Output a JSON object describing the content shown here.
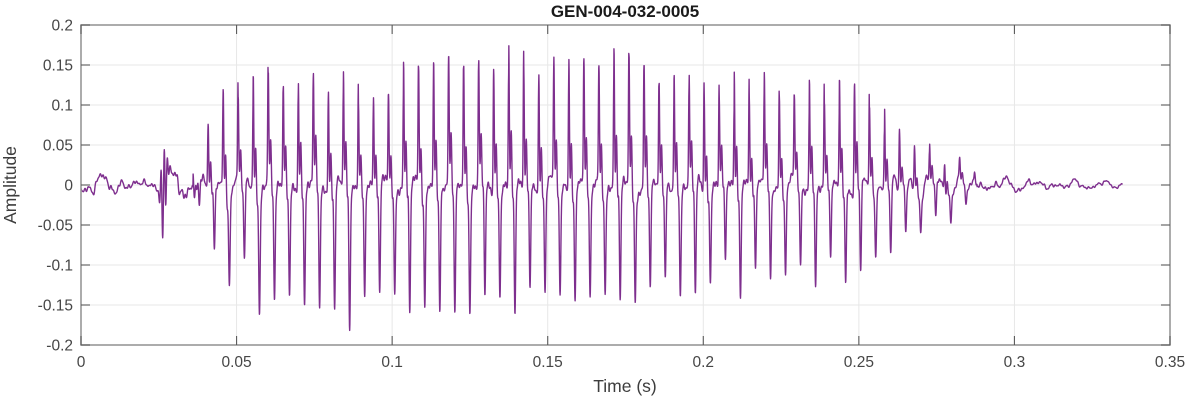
{
  "figure": {
    "background": "#ffffff"
  },
  "chart_data": {
    "type": "line",
    "title": "GEN-004-032-0005",
    "xlabel": "Time (s)",
    "ylabel": "Amplitude",
    "xlim": [
      0,
      0.35
    ],
    "ylim": [
      -0.2,
      0.2
    ],
    "xticks": [
      0,
      0.05,
      0.1,
      0.15,
      0.2,
      0.25,
      0.3,
      0.35
    ],
    "xtick_labels": [
      "0",
      "0.05",
      "0.1",
      "0.15",
      "0.2",
      "0.25",
      "0.3",
      "0.35"
    ],
    "yticks": [
      0.2,
      0.15,
      0.1,
      0.05,
      0,
      -0.05,
      -0.1,
      -0.15,
      -0.2
    ],
    "ytick_labels": [
      "0.2",
      "0.15",
      "0.1",
      "0.05",
      "0",
      "-0.05",
      "-0.1",
      "-0.15",
      "-0.2"
    ],
    "grid": true,
    "box": true,
    "legend": null,
    "line_color": "#7E2F8E",
    "grid_color": "#e7e7e7",
    "axis_color": "#979797",
    "tick_color": "#5a5a5a",
    "tick_label_color": "#464646",
    "label_color": "#3d3d3d",
    "title_color": "#1a1a1a",
    "signal": {
      "kind": "speech-waveform-envelope",
      "duration_s": 0.3346,
      "f0_hz": 207,
      "voiced": {
        "t": [
          0.036,
          0.039,
          0.042,
          0.045,
          0.048,
          0.053,
          0.058,
          0.064,
          0.072,
          0.08,
          0.088,
          0.096,
          0.105,
          0.115,
          0.125,
          0.134,
          0.143,
          0.15,
          0.157,
          0.165,
          0.173,
          0.181,
          0.188,
          0.196,
          0.204,
          0.212,
          0.22,
          0.228,
          0.236,
          0.244,
          0.252,
          0.258,
          0.264,
          0.27,
          0.276,
          0.282,
          0.288
        ],
        "upper": [
          0.015,
          0.045,
          0.075,
          0.095,
          0.105,
          0.11,
          0.13,
          0.125,
          0.13,
          0.12,
          0.115,
          0.12,
          0.13,
          0.13,
          0.14,
          0.15,
          0.157,
          0.15,
          0.157,
          0.145,
          0.145,
          0.147,
          0.135,
          0.11,
          0.13,
          0.115,
          0.12,
          0.115,
          0.11,
          0.105,
          0.11,
          0.085,
          0.06,
          0.045,
          0.032,
          0.02,
          0.008
        ],
        "lower": [
          -0.015,
          -0.045,
          -0.075,
          -0.09,
          -0.1,
          -0.11,
          -0.14,
          -0.15,
          -0.15,
          -0.155,
          -0.165,
          -0.15,
          -0.145,
          -0.14,
          -0.145,
          -0.15,
          -0.148,
          -0.145,
          -0.15,
          -0.14,
          -0.135,
          -0.14,
          -0.13,
          -0.125,
          -0.12,
          -0.115,
          -0.11,
          -0.12,
          -0.11,
          -0.105,
          -0.1,
          -0.085,
          -0.065,
          -0.05,
          -0.04,
          -0.028,
          -0.01
        ]
      },
      "noise": {
        "t": [
          0,
          0.006,
          0.013,
          0.02,
          0.024,
          0.027,
          0.03,
          0.034,
          0.038,
          0.044,
          0.06,
          0.24,
          0.256,
          0.266,
          0.276,
          0.286,
          0.296,
          0.308,
          0.32,
          0.3346
        ],
        "amp": [
          0.012,
          0.016,
          0.012,
          0.01,
          0.011,
          0.02,
          0.027,
          0.028,
          0.024,
          0.016,
          0.012,
          0.012,
          0.014,
          0.018,
          0.016,
          0.013,
          0.01,
          0.008,
          0.007,
          0.005
        ]
      },
      "click": {
        "t": 0.0265,
        "amp": 0.055,
        "freq_hz": 950,
        "width_s": 0.0011
      },
      "pulse": {
        "spike_sigma": 0.03,
        "shoulder_amp": 0.38,
        "shoulder_pos": 0.14,
        "shoulder_sigma": 0.045,
        "trough_amp": 0.95,
        "trough_pos": 0.42,
        "trough_sigma": 0.055,
        "ripple_amp": 0.26,
        "ripple_cycles": 6.5,
        "ripple_decay": 4.0
      },
      "seed": 42
    }
  }
}
